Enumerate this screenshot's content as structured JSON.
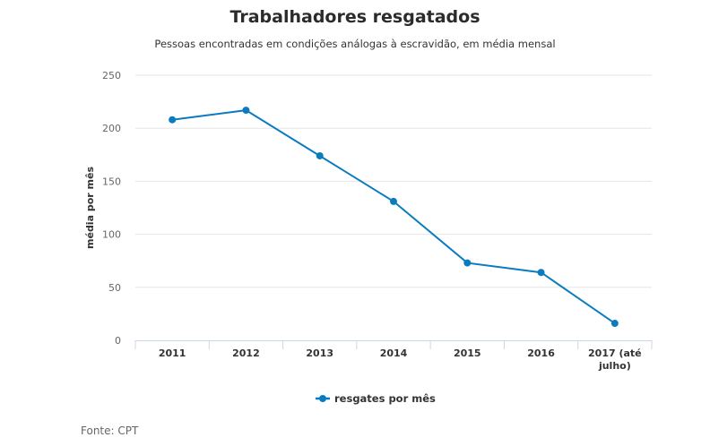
{
  "chart_data": {
    "type": "line",
    "title": "Trabalhadores resgatados",
    "subtitle": "Pessoas encontradas em condições análogas à escravidão, em média mensal",
    "xlabel": "",
    "ylabel": "média por mês",
    "categories": [
      "2011",
      "2012",
      "2013",
      "2014",
      "2015",
      "2016",
      "2017 (até julho)"
    ],
    "category_lines": [
      [
        "2011"
      ],
      [
        "2012"
      ],
      [
        "2013"
      ],
      [
        "2014"
      ],
      [
        "2015"
      ],
      [
        "2016"
      ],
      [
        "2017 (até",
        "julho)"
      ]
    ],
    "series": [
      {
        "name": "resgates por mês",
        "values": [
          208,
          217,
          174,
          131,
          73,
          64,
          16
        ],
        "color": "#0b7bbf"
      }
    ],
    "ylim": [
      0,
      250
    ],
    "yticks": [
      0,
      50,
      100,
      150,
      200,
      250
    ],
    "grid": true,
    "legend": "bottom-center",
    "source": "Fonte: CPT"
  }
}
